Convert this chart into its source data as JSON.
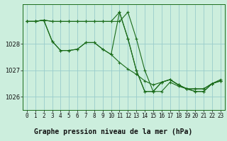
{
  "background_color": "#cceedd",
  "grid_color": "#99cccc",
  "line_color": "#1a6b1a",
  "title": "Graphe pression niveau de la mer (hPa)",
  "xlim": [
    -0.5,
    23.5
  ],
  "ylim": [
    1025.5,
    1029.5
  ],
  "yticks": [
    1026,
    1027,
    1028
  ],
  "xticks": [
    0,
    1,
    2,
    3,
    4,
    5,
    6,
    7,
    8,
    9,
    10,
    11,
    12,
    13,
    14,
    15,
    16,
    17,
    18,
    19,
    20,
    21,
    22,
    23
  ],
  "series": [
    [
      1028.85,
      1028.85,
      1028.9,
      1028.85,
      1028.85,
      1028.85,
      1028.85,
      1028.85,
      1028.85,
      1028.85,
      1028.85,
      1028.85,
      1029.2,
      1028.2,
      1027.0,
      1026.2,
      1026.2,
      1026.55,
      1026.4,
      1026.3,
      1026.2,
      1026.2,
      1026.5,
      1026.6
    ],
    [
      1028.85,
      1028.85,
      1028.9,
      1028.1,
      1027.75,
      1027.75,
      1027.8,
      1028.05,
      1028.05,
      1027.8,
      1027.6,
      1027.3,
      1027.05,
      1026.85,
      1026.6,
      1026.45,
      1026.55,
      1026.65,
      1026.45,
      1026.3,
      1026.3,
      1026.3,
      1026.5,
      1026.6
    ],
    [
      1028.85,
      1028.85,
      1028.9,
      1028.1,
      1027.75,
      1027.75,
      1027.8,
      1028.05,
      1028.05,
      1027.8,
      1027.6,
      1029.2,
      1028.2,
      1027.0,
      1026.2,
      1026.2,
      1026.55,
      1026.65,
      1026.45,
      1026.3,
      1026.3,
      1026.3,
      1026.5,
      1026.6
    ],
    [
      1028.85,
      1028.85,
      1028.9,
      1028.85,
      1028.85,
      1028.85,
      1028.85,
      1028.85,
      1028.85,
      1028.85,
      1028.85,
      1029.2,
      1028.2,
      1027.0,
      1026.2,
      1026.2,
      1026.55,
      1026.65,
      1026.45,
      1026.3,
      1026.2,
      1026.2,
      1026.5,
      1026.65
    ]
  ],
  "marker": "+",
  "markersize": 3.5,
  "linewidth": 0.8,
  "title_fontsize": 7,
  "tick_fontsize": 5.5
}
